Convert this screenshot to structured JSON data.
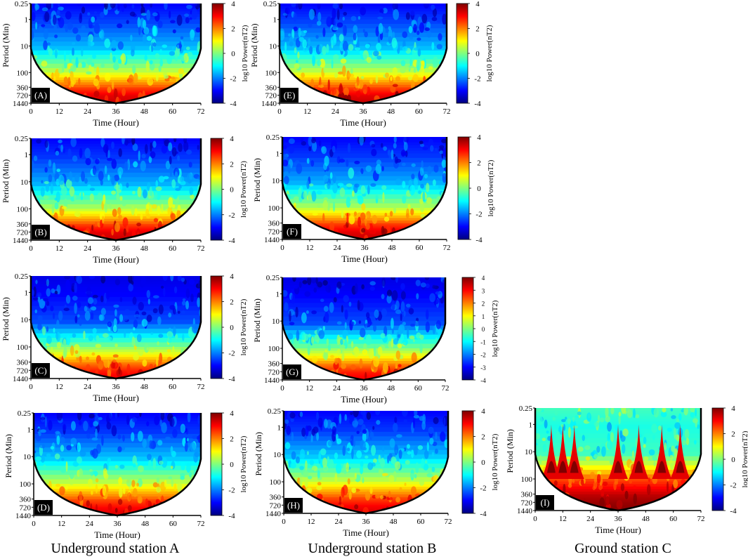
{
  "figure": {
    "captions": [
      "Underground station A",
      "Underground station B",
      "Ground station C"
    ]
  },
  "colors": {
    "colormap": [
      "#00007f",
      "#0000ff",
      "#007fff",
      "#00ffff",
      "#7fff7f",
      "#ffff00",
      "#ff7f00",
      "#ff0000",
      "#7f0000"
    ],
    "cone_outline": "#000000"
  },
  "chart_data": [
    {
      "type": "heatmap",
      "panel_label": "(A)",
      "station": "Underground station A",
      "xlabel": "Time (Hour)",
      "ylabel": "Period (Min)",
      "xticks": [
        "0",
        "12",
        "24",
        "36",
        "48",
        "60",
        "72"
      ],
      "yticks": [
        "0.25",
        "1",
        "10",
        "100",
        "360",
        "720",
        "1440"
      ],
      "xlim": [
        0,
        72
      ],
      "ylim": [
        0.25,
        1440
      ],
      "y_scale": "log",
      "colorbar": {
        "label": "log10 Power(nT2)",
        "ticks": [
          "4",
          "2",
          "0",
          "-2",
          "-4"
        ],
        "range": [
          -4,
          4
        ]
      },
      "cone_of_influence": true,
      "power_profile": [
        {
          "period": 0.25,
          "log10_power": -3.0
        },
        {
          "period": 1,
          "log10_power": -2.5
        },
        {
          "period": 10,
          "log10_power": -1.5
        },
        {
          "period": 100,
          "log10_power": 0.8
        },
        {
          "period": 360,
          "log10_power": 2.5
        },
        {
          "period": 720,
          "log10_power": 3.2
        },
        {
          "period": 1440,
          "log10_power": 3.5
        }
      ]
    },
    {
      "type": "heatmap",
      "panel_label": "(B)",
      "station": "Underground station A",
      "xlabel": "Time (Hour)",
      "ylabel": "Period (Min)",
      "xticks": [
        "0",
        "12",
        "24",
        "36",
        "48",
        "60",
        "72"
      ],
      "yticks": [
        "0.25",
        "1",
        "10",
        "100",
        "360",
        "720",
        "1440"
      ],
      "xlim": [
        0,
        72
      ],
      "ylim": [
        0.25,
        1440
      ],
      "y_scale": "log",
      "colorbar": {
        "label": "log10 Power(nT2)",
        "ticks": [
          "4",
          "2",
          "0",
          "-2",
          "-4"
        ],
        "range": [
          -4,
          4
        ]
      },
      "cone_of_influence": true,
      "power_profile": [
        {
          "period": 0.25,
          "log10_power": -3.0
        },
        {
          "period": 1,
          "log10_power": -2.6
        },
        {
          "period": 10,
          "log10_power": -1.6
        },
        {
          "period": 100,
          "log10_power": 0.6
        },
        {
          "period": 360,
          "log10_power": 2.5
        },
        {
          "period": 720,
          "log10_power": 3.2
        },
        {
          "period": 1440,
          "log10_power": 3.5
        }
      ]
    },
    {
      "type": "heatmap",
      "panel_label": "(C)",
      "station": "Underground station A",
      "xlabel": "Time (Hour)",
      "ylabel": "Period (Min)",
      "xticks": [
        "0",
        "12",
        "24",
        "36",
        "48",
        "60",
        "72"
      ],
      "yticks": [
        "0.25",
        "1",
        "10",
        "100",
        "360",
        "720",
        "1440"
      ],
      "xlim": [
        0,
        72
      ],
      "ylim": [
        0.25,
        1440
      ],
      "y_scale": "log",
      "colorbar": {
        "label": "log10 Power(nT2)",
        "ticks": [
          "4",
          "2",
          "0",
          "-2",
          "-4"
        ],
        "range": [
          -4,
          4
        ]
      },
      "cone_of_influence": true,
      "power_profile": [
        {
          "period": 0.25,
          "log10_power": -3.2
        },
        {
          "period": 1,
          "log10_power": -3.0
        },
        {
          "period": 10,
          "log10_power": -2.4
        },
        {
          "period": 100,
          "log10_power": 0.2
        },
        {
          "period": 360,
          "log10_power": 2.0
        },
        {
          "period": 720,
          "log10_power": 2.8
        },
        {
          "period": 1440,
          "log10_power": 3.2
        }
      ]
    },
    {
      "type": "heatmap",
      "panel_label": "(D)",
      "station": "Underground station A",
      "xlabel": "Time (Hour)",
      "ylabel": "Period (Min)",
      "xticks": [
        "0",
        "12",
        "24",
        "36",
        "48",
        "60",
        "72"
      ],
      "yticks": [
        "0.25",
        "1",
        "10",
        "100",
        "360",
        "720",
        "1440"
      ],
      "xlim": [
        0,
        72
      ],
      "ylim": [
        0.25,
        1440
      ],
      "y_scale": "log",
      "colorbar": {
        "label": "log10 Power(nT2)",
        "ticks": [
          "4",
          "2",
          "0",
          "-2",
          "-4"
        ],
        "range": [
          -4,
          4
        ]
      },
      "cone_of_influence": true,
      "power_profile": [
        {
          "period": 0.25,
          "log10_power": -3.0
        },
        {
          "period": 1,
          "log10_power": -2.6
        },
        {
          "period": 10,
          "log10_power": -1.4
        },
        {
          "period": 100,
          "log10_power": 0.8
        },
        {
          "period": 360,
          "log10_power": 2.4
        },
        {
          "period": 720,
          "log10_power": 3.0
        },
        {
          "period": 1440,
          "log10_power": 3.4
        }
      ]
    },
    {
      "type": "heatmap",
      "panel_label": "(E)",
      "station": "Underground station B",
      "xlabel": "Time (Hour)",
      "ylabel": "Period (Min)",
      "xticks": [
        "0",
        "12",
        "24",
        "36",
        "48",
        "60",
        "72"
      ],
      "yticks": [
        "0.25",
        "1",
        "10",
        "100",
        "360",
        "720",
        "1440"
      ],
      "xlim": [
        0,
        72
      ],
      "ylim": [
        0.25,
        1440
      ],
      "y_scale": "log",
      "colorbar": {
        "label": "log10 Power(nT2)",
        "ticks": [
          "4",
          "2",
          "0",
          "-2",
          "-4"
        ],
        "range": [
          -4,
          4
        ]
      },
      "cone_of_influence": true,
      "power_profile": [
        {
          "period": 0.25,
          "log10_power": -3.0
        },
        {
          "period": 1,
          "log10_power": -2.5
        },
        {
          "period": 10,
          "log10_power": -1.5
        },
        {
          "period": 100,
          "log10_power": 0.8
        },
        {
          "period": 360,
          "log10_power": 2.5
        },
        {
          "period": 720,
          "log10_power": 3.2
        },
        {
          "period": 1440,
          "log10_power": 3.5
        }
      ]
    },
    {
      "type": "heatmap",
      "panel_label": "(F)",
      "station": "Underground station B",
      "xlabel": "Time (Hour)",
      "ylabel": "Period (Min)",
      "xticks": [
        "0",
        "12",
        "24",
        "36",
        "48",
        "60",
        "72"
      ],
      "yticks": [
        "0.25",
        "1",
        "10",
        "100",
        "360",
        "720",
        "1440"
      ],
      "xlim": [
        0,
        72
      ],
      "ylim": [
        0.25,
        1440
      ],
      "y_scale": "log",
      "colorbar": {
        "label": "log10 Power(nT2)",
        "ticks": [
          "4",
          "2",
          "0",
          "-2",
          "-4"
        ],
        "range": [
          -4,
          4
        ]
      },
      "cone_of_influence": true,
      "power_profile": [
        {
          "period": 0.25,
          "log10_power": -3.0
        },
        {
          "period": 1,
          "log10_power": -2.6
        },
        {
          "period": 10,
          "log10_power": -1.6
        },
        {
          "period": 100,
          "log10_power": 0.6
        },
        {
          "period": 360,
          "log10_power": 2.5
        },
        {
          "period": 720,
          "log10_power": 3.2
        },
        {
          "period": 1440,
          "log10_power": 3.5
        }
      ]
    },
    {
      "type": "heatmap",
      "panel_label": "(G)",
      "station": "Underground station B",
      "xlabel": "Time (Hour)",
      "ylabel": "Period (Min)",
      "xticks": [
        "0",
        "12",
        "24",
        "36",
        "48",
        "60",
        "72"
      ],
      "yticks": [
        "0.25",
        "1",
        "10",
        "100",
        "360",
        "720",
        "1440"
      ],
      "xlim": [
        0,
        72
      ],
      "ylim": [
        0.25,
        1440
      ],
      "y_scale": "log",
      "colorbar": {
        "label": "log10 Power(nT2)",
        "ticks": [
          "4",
          "3",
          "2",
          "1",
          "0",
          "-1",
          "-2",
          "-3",
          "-4"
        ],
        "range": [
          -4,
          4
        ]
      },
      "cone_of_influence": true,
      "power_profile": [
        {
          "period": 0.25,
          "log10_power": -3.2
        },
        {
          "period": 1,
          "log10_power": -3.0
        },
        {
          "period": 10,
          "log10_power": -2.4
        },
        {
          "period": 100,
          "log10_power": 0.2
        },
        {
          "period": 360,
          "log10_power": 2.0
        },
        {
          "period": 720,
          "log10_power": 2.8
        },
        {
          "period": 1440,
          "log10_power": 3.2
        }
      ]
    },
    {
      "type": "heatmap",
      "panel_label": "(H)",
      "station": "Underground station B",
      "xlabel": "Time (Hour)",
      "ylabel": "Period (Min)",
      "xticks": [
        "0",
        "12",
        "24",
        "36",
        "48",
        "60",
        "72"
      ],
      "yticks": [
        "0.25",
        "1",
        "10",
        "100",
        "360",
        "720",
        "1440"
      ],
      "xlim": [
        0,
        72
      ],
      "ylim": [
        0.25,
        1440
      ],
      "y_scale": "log",
      "colorbar": {
        "label": "log10 Power(nT2)",
        "ticks": [
          "4",
          "2",
          "0",
          "-2",
          "-4"
        ],
        "range": [
          -4,
          4
        ]
      },
      "cone_of_influence": true,
      "power_profile": [
        {
          "period": 0.25,
          "log10_power": -3.0
        },
        {
          "period": 1,
          "log10_power": -2.6
        },
        {
          "period": 10,
          "log10_power": -1.4
        },
        {
          "period": 100,
          "log10_power": 0.8
        },
        {
          "period": 360,
          "log10_power": 2.4
        },
        {
          "period": 720,
          "log10_power": 3.0
        },
        {
          "period": 1440,
          "log10_power": 3.4
        }
      ]
    },
    {
      "type": "heatmap",
      "panel_label": "(I)",
      "station": "Ground station C",
      "xlabel": "Time (Hour)",
      "ylabel": "Period (Min)",
      "xticks": [
        "0",
        "12",
        "24",
        "36",
        "48",
        "60",
        "72"
      ],
      "yticks": [
        "0.25",
        "1",
        "10",
        "100",
        "360",
        "720",
        "1440"
      ],
      "xlim": [
        0,
        72
      ],
      "ylim": [
        0.25,
        1440
      ],
      "y_scale": "log",
      "colorbar": {
        "label": "log10 Power(nT2)",
        "ticks": [
          "4",
          "2",
          "0",
          "-2",
          "-4"
        ],
        "range": [
          -4,
          4
        ]
      },
      "cone_of_influence": true,
      "power_profile": [
        {
          "period": 0.25,
          "log10_power": -0.5
        },
        {
          "period": 1,
          "log10_power": -0.8
        },
        {
          "period": 10,
          "log10_power": -0.5
        },
        {
          "period": 100,
          "log10_power": 2.5
        },
        {
          "period": 360,
          "log10_power": 3.5
        },
        {
          "period": 720,
          "log10_power": 3.8
        },
        {
          "period": 1440,
          "log10_power": 4.0
        }
      ],
      "spike_hours": [
        7,
        12,
        17,
        36,
        45,
        55,
        63
      ]
    }
  ]
}
